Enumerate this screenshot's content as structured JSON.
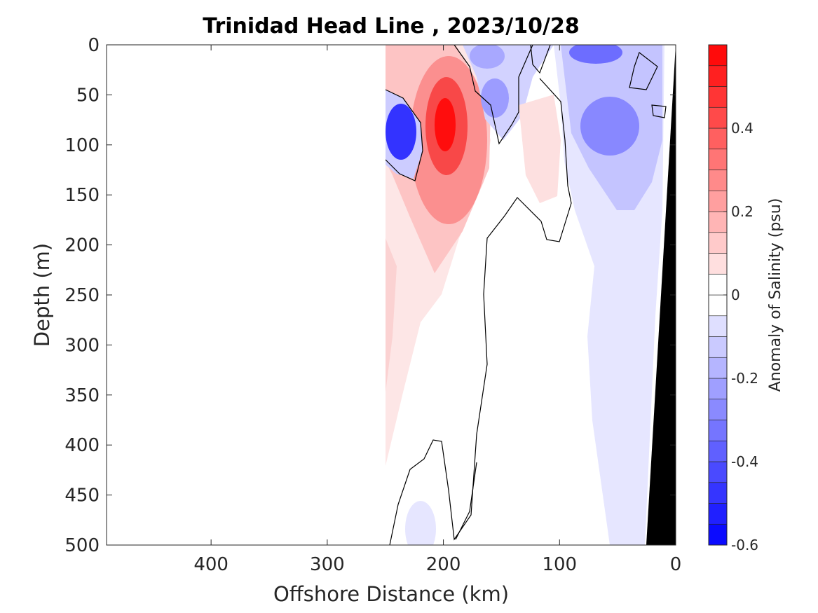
{
  "chart_data": {
    "type": "contour",
    "title": "Trinidad Head Line , 2023/10/28",
    "xlabel": "Offshore Distance (km)",
    "ylabel": "Depth (m)",
    "xlim": [
      490,
      0
    ],
    "ylim": [
      0,
      500
    ],
    "x_ticks": [
      "400",
      "300",
      "200",
      "100",
      "0"
    ],
    "y_ticks": [
      "0",
      "50",
      "100",
      "150",
      "200",
      "250",
      "300",
      "350",
      "400",
      "450",
      "500"
    ],
    "colorbar": {
      "label": "Anomaly of Salinity (psu)",
      "range": [
        -0.6,
        0.6
      ],
      "ticks": [
        "0.4",
        "0.2",
        "0",
        "-0.2",
        "-0.4",
        "-0.6"
      ],
      "low_color": "#0000ff",
      "mid_color": "#ffffff",
      "high_color": "#ff0000"
    },
    "data_extent_km": [
      0,
      252
    ],
    "features": [
      {
        "kind": "max",
        "x_km": 198,
        "depth_m": 80,
        "value": 0.58
      },
      {
        "kind": "min",
        "x_km": 240,
        "depth_m": 80,
        "value": -0.55
      },
      {
        "kind": "min",
        "x_km": 65,
        "depth_m": 10,
        "value": -0.35
      },
      {
        "kind": "min",
        "x_km": 60,
        "depth_m": 85,
        "value": -0.3
      },
      {
        "kind": "min",
        "x_km": 155,
        "depth_m": 50,
        "value": -0.25
      },
      {
        "kind": "max",
        "x_km": 120,
        "depth_m": 75,
        "value": 0.15
      }
    ],
    "bathymetry_color": "#000000"
  }
}
